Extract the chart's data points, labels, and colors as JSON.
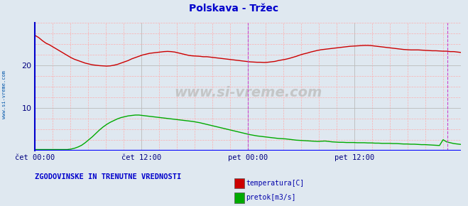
{
  "title": "Polskava - Tržec",
  "title_color": "#0000cc",
  "bg_color": "#dfe8f0",
  "plot_bg_color": "#dfe8f0",
  "xlim": [
    0,
    576
  ],
  "ylim": [
    0,
    30
  ],
  "yticks": [
    10,
    20
  ],
  "x_tick_positions": [
    0,
    144,
    288,
    432,
    576
  ],
  "x_tick_labels": [
    "čet 00:00",
    "čet 12:00",
    "pet 00:00",
    "pet 12:00",
    ""
  ],
  "vline1_x": 288,
  "vline2_x": 558,
  "vline_color": "#cc44cc",
  "left_spine_color": "#0000cc",
  "bottom_line_color": "#0000ff",
  "arrow_color": "#cc0000",
  "watermark": "www.si-vreme.com",
  "watermark_color": "#aaaaaa",
  "left_label": "www.si-vreme.com",
  "left_label_color": "#0055aa",
  "footer_text": "ZGODOVINSKE IN TRENUTNE VREDNOSTI",
  "footer_color": "#0000cc",
  "legend_labels": [
    "temperatura[C]",
    "pretok[m3/s]"
  ],
  "legend_colors": [
    "#cc0000",
    "#00aa00"
  ],
  "temp_color": "#cc0000",
  "flow_color": "#00aa00",
  "temp_data": [
    27.0,
    26.5,
    25.8,
    25.2,
    24.8,
    24.3,
    23.8,
    23.3,
    22.8,
    22.3,
    21.8,
    21.4,
    21.1,
    20.8,
    20.5,
    20.3,
    20.1,
    20.0,
    19.9,
    19.85,
    19.8,
    19.85,
    20.0,
    20.2,
    20.5,
    20.8,
    21.1,
    21.5,
    21.8,
    22.1,
    22.4,
    22.6,
    22.8,
    22.9,
    23.0,
    23.1,
    23.2,
    23.25,
    23.2,
    23.1,
    22.9,
    22.7,
    22.5,
    22.3,
    22.2,
    22.15,
    22.1,
    22.0,
    22.0,
    21.9,
    21.8,
    21.7,
    21.6,
    21.5,
    21.4,
    21.3,
    21.2,
    21.1,
    21.0,
    20.9,
    20.8,
    20.75,
    20.7,
    20.7,
    20.65,
    20.7,
    20.8,
    20.9,
    21.1,
    21.25,
    21.4,
    21.6,
    21.85,
    22.1,
    22.4,
    22.65,
    22.85,
    23.1,
    23.3,
    23.5,
    23.65,
    23.75,
    23.85,
    23.95,
    24.05,
    24.15,
    24.25,
    24.35,
    24.45,
    24.5,
    24.55,
    24.6,
    24.65,
    24.65,
    24.6,
    24.5,
    24.4,
    24.3,
    24.2,
    24.1,
    24.0,
    23.9,
    23.8,
    23.7,
    23.65,
    23.6,
    23.6,
    23.6,
    23.55,
    23.5,
    23.45,
    23.4,
    23.4,
    23.35,
    23.3,
    23.3,
    23.2,
    23.2,
    23.1,
    23.0
  ],
  "flow_data": [
    0.2,
    0.2,
    0.2,
    0.2,
    0.2,
    0.2,
    0.2,
    0.2,
    0.2,
    0.2,
    0.3,
    0.5,
    0.8,
    1.2,
    1.8,
    2.5,
    3.2,
    4.0,
    4.8,
    5.5,
    6.1,
    6.6,
    7.0,
    7.4,
    7.7,
    7.9,
    8.1,
    8.2,
    8.3,
    8.3,
    8.2,
    8.1,
    8.0,
    7.9,
    7.8,
    7.7,
    7.6,
    7.5,
    7.4,
    7.3,
    7.2,
    7.1,
    7.0,
    6.9,
    6.8,
    6.65,
    6.5,
    6.3,
    6.1,
    5.9,
    5.7,
    5.5,
    5.3,
    5.1,
    4.9,
    4.7,
    4.5,
    4.3,
    4.1,
    3.9,
    3.7,
    3.55,
    3.4,
    3.3,
    3.2,
    3.1,
    3.0,
    2.9,
    2.8,
    2.75,
    2.7,
    2.6,
    2.5,
    2.4,
    2.35,
    2.3,
    2.25,
    2.2,
    2.15,
    2.1,
    2.15,
    2.2,
    2.1,
    2.0,
    1.95,
    1.9,
    1.9,
    1.85,
    1.85,
    1.85,
    1.8,
    1.8,
    1.8,
    1.75,
    1.75,
    1.7,
    1.7,
    1.65,
    1.65,
    1.65,
    1.6,
    1.6,
    1.55,
    1.5,
    1.5,
    1.45,
    1.45,
    1.4,
    1.35,
    1.35,
    1.3,
    1.25,
    1.2,
    1.15,
    2.5,
    2.0,
    1.8,
    1.6,
    1.5,
    1.4
  ]
}
